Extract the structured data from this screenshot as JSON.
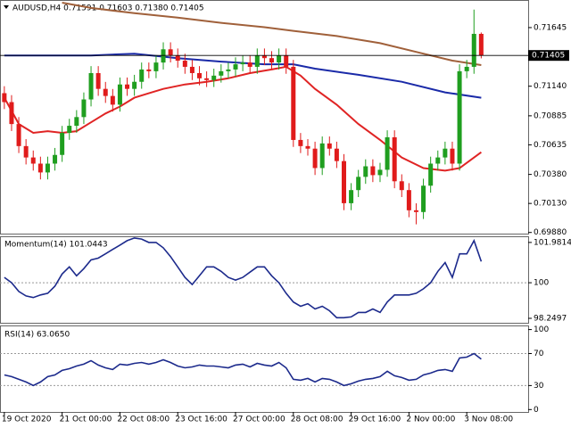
{
  "chart_data": [
    {
      "type": "candlestick",
      "title": "AUDUSD,H4  0.71591 0.71603 0.71380 0.71405",
      "up_color": "#1f9e1f",
      "down_color": "#e01b1b",
      "open": [
        0.7108,
        0.71003,
        0.70814,
        0.70624,
        0.70526,
        0.70473,
        0.70397,
        0.70473,
        0.70548,
        0.70738,
        0.70799,
        0.70874,
        0.71026,
        0.71253,
        0.71117,
        0.71056,
        0.70981,
        0.71155,
        0.71117,
        0.71178,
        0.71284,
        0.71269,
        0.71344,
        0.71458,
        0.71405,
        0.7136,
        0.71307,
        0.71253,
        0.71208,
        0.71193,
        0.71231,
        0.71269,
        0.71284,
        0.71329,
        0.71344,
        0.71307,
        0.71405,
        0.71382,
        0.71344,
        0.71405,
        0.71307,
        0.70677,
        0.70624,
        0.70602,
        0.70435,
        0.70647,
        0.70602,
        0.70495,
        0.70132,
        0.70245,
        0.70359,
        0.7045,
        0.70374,
        0.7042,
        0.707,
        0.70321,
        0.70245,
        0.70071,
        0.70056,
        0.70283,
        0.70473,
        0.70526,
        0.70602,
        0.70473,
        0.71269,
        0.71307,
        0.71591
      ],
      "high": [
        0.7114,
        0.71063,
        0.70874,
        0.70684,
        0.70586,
        0.70533,
        0.70533,
        0.70608,
        0.70798,
        0.70859,
        0.70934,
        0.71086,
        0.71313,
        0.71313,
        0.71177,
        0.71116,
        0.71215,
        0.71215,
        0.71238,
        0.71344,
        0.71344,
        0.71404,
        0.71518,
        0.71518,
        0.71465,
        0.7142,
        0.71367,
        0.71313,
        0.71268,
        0.71291,
        0.71329,
        0.71344,
        0.71389,
        0.71404,
        0.71404,
        0.71465,
        0.71465,
        0.71442,
        0.71465,
        0.71465,
        0.71367,
        0.70737,
        0.70684,
        0.70662,
        0.70707,
        0.70707,
        0.70662,
        0.70555,
        0.70305,
        0.70419,
        0.7051,
        0.7051,
        0.7048,
        0.7076,
        0.7076,
        0.70381,
        0.70305,
        0.70131,
        0.70343,
        0.70533,
        0.70586,
        0.70662,
        0.70662,
        0.71329,
        0.71367,
        0.718,
        0.71603
      ],
      "low": [
        0.70943,
        0.70754,
        0.70564,
        0.70466,
        0.70413,
        0.70337,
        0.70337,
        0.70413,
        0.70488,
        0.70678,
        0.70739,
        0.70814,
        0.70966,
        0.71057,
        0.70996,
        0.70921,
        0.70921,
        0.71057,
        0.71057,
        0.71118,
        0.71209,
        0.71209,
        0.71284,
        0.71345,
        0.713,
        0.71247,
        0.71193,
        0.71148,
        0.71133,
        0.71133,
        0.71171,
        0.71209,
        0.71224,
        0.71269,
        0.71247,
        0.71247,
        0.71322,
        0.71284,
        0.71284,
        0.71247,
        0.70617,
        0.70564,
        0.70542,
        0.70375,
        0.70375,
        0.70542,
        0.70435,
        0.70072,
        0.70072,
        0.70185,
        0.70299,
        0.70314,
        0.70314,
        0.7036,
        0.70261,
        0.70185,
        0.70011,
        0.6995,
        0.69996,
        0.70223,
        0.70413,
        0.70466,
        0.70413,
        0.70413,
        0.71209,
        0.71247,
        0.7138
      ],
      "close": [
        0.71003,
        0.70814,
        0.70624,
        0.70526,
        0.70473,
        0.70397,
        0.70473,
        0.70548,
        0.70738,
        0.70799,
        0.70874,
        0.71026,
        0.71253,
        0.71117,
        0.71056,
        0.70981,
        0.71155,
        0.71117,
        0.71178,
        0.71284,
        0.71269,
        0.71344,
        0.71458,
        0.71405,
        0.7136,
        0.71307,
        0.71253,
        0.71208,
        0.71193,
        0.71231,
        0.71269,
        0.71284,
        0.71329,
        0.71344,
        0.71307,
        0.71405,
        0.71382,
        0.71344,
        0.71405,
        0.71307,
        0.70677,
        0.70624,
        0.70602,
        0.70435,
        0.70647,
        0.70602,
        0.70495,
        0.70132,
        0.70245,
        0.70359,
        0.7045,
        0.70374,
        0.7042,
        0.707,
        0.70321,
        0.70245,
        0.70071,
        0.70056,
        0.70283,
        0.70473,
        0.70526,
        0.70602,
        0.70473,
        0.71269,
        0.71307,
        0.71591,
        0.71405
      ],
      "overlays": [
        {
          "color": "#a0603a",
          "x": [
            8,
            12,
            18,
            24,
            30,
            36,
            40,
            46,
            52,
            58,
            62,
            66
          ],
          "values": [
            0.7186,
            0.71814,
            0.71769,
            0.71731,
            0.71686,
            0.71648,
            0.71617,
            0.71572,
            0.71511,
            0.7142,
            0.7136,
            0.71322
          ]
        },
        {
          "color": "#1a2aa8",
          "x": [
            0,
            12,
            18,
            24,
            30,
            36,
            40,
            43,
            49,
            55,
            61,
            66
          ],
          "values": [
            0.71405,
            0.71405,
            0.7142,
            0.71382,
            0.71352,
            0.71329,
            0.71329,
            0.71291,
            0.71238,
            0.71178,
            0.71087,
            0.71041
          ]
        },
        {
          "color": "#e02424",
          "x": [
            0,
            2,
            4,
            6,
            8,
            10,
            12,
            14,
            16,
            18,
            20,
            22,
            25,
            28,
            31,
            34,
            37,
            39,
            41,
            43,
            46,
            49,
            52,
            55,
            58,
            61,
            63,
            66
          ],
          "values": [
            0.71041,
            0.70814,
            0.70738,
            0.70753,
            0.70738,
            0.70753,
            0.70829,
            0.70905,
            0.70965,
            0.71041,
            0.71079,
            0.71117,
            0.71155,
            0.71178,
            0.71208,
            0.71253,
            0.71284,
            0.71307,
            0.71231,
            0.71117,
            0.70981,
            0.70814,
            0.70677,
            0.70526,
            0.70435,
            0.70412,
            0.70435,
            0.70571
          ]
        }
      ],
      "last_price": {
        "value": 0.71405,
        "label": "0.71405"
      },
      "xlim": [
        -0.6,
        72.5
      ],
      "xticks": [
        {
          "value": 0,
          "label": "19 Oct 2020"
        },
        {
          "value": 8,
          "label": "21 Oct 00:00"
        },
        {
          "value": 16,
          "label": "22 Oct 08:00"
        },
        {
          "value": 24,
          "label": "23 Oct 16:00"
        },
        {
          "value": 32,
          "label": "27 Oct 00:00"
        },
        {
          "value": 40,
          "label": "28 Oct 08:00"
        },
        {
          "value": 48,
          "label": "29 Oct 16:00"
        },
        {
          "value": 56,
          "label": "2 Nov 00:00"
        },
        {
          "value": 64,
          "label": "3 Nov 08:00"
        }
      ],
      "ylim": [
        0.6987,
        0.71875
      ],
      "yticks": [
        0.71645,
        {
          "value": 0.7114,
          "label": "0.71140"
        },
        0.70885,
        0.70635,
        {
          "value": 0.7038,
          "label": "0.70380"
        },
        {
          "value": 0.7013,
          "label": "0.70130"
        },
        {
          "value": 0.6988,
          "label": "0.69880"
        }
      ]
    },
    {
      "type": "line",
      "title": "Momentum(14) 101.0443",
      "color": "#1c2a8c",
      "values": [
        100.26,
        100.0,
        99.57,
        99.35,
        99.27,
        99.4,
        99.48,
        99.83,
        100.43,
        100.78,
        100.34,
        100.69,
        101.12,
        101.21,
        101.42,
        101.64,
        101.85,
        102.07,
        102.2,
        102.15,
        101.98,
        101.98,
        101.72,
        101.29,
        100.78,
        100.26,
        99.91,
        100.34,
        100.78,
        100.78,
        100.56,
        100.26,
        100.13,
        100.26,
        100.52,
        100.78,
        100.78,
        100.34,
        100.0,
        99.48,
        99.05,
        98.84,
        98.97,
        98.71,
        98.84,
        98.62,
        98.28,
        98.28,
        98.32,
        98.54,
        98.54,
        98.71,
        98.54,
        99.05,
        99.4,
        99.4,
        99.4,
        99.48,
        99.7,
        100.0,
        100.56,
        100.99,
        100.26,
        101.42,
        101.42,
        102.07,
        101.0443
      ],
      "xlim": [
        -0.6,
        72.5
      ],
      "ylim": [
        98.03,
        102.24
      ],
      "yticks": [
        98.2497,
        100,
        101.9814
      ],
      "levels": [
        100
      ]
    },
    {
      "type": "line",
      "title": "RSI(14) 63.0650",
      "color": "#1c2a8c",
      "values": [
        43.3,
        41.1,
        37.8,
        34.4,
        30.0,
        34.4,
        41.1,
        43.3,
        48.9,
        51.1,
        54.4,
        56.7,
        61.1,
        55.6,
        52.2,
        50.0,
        56.7,
        55.6,
        57.8,
        58.9,
        56.7,
        58.9,
        62.2,
        58.9,
        54.4,
        52.2,
        53.3,
        55.6,
        54.4,
        54.4,
        53.3,
        52.2,
        55.6,
        56.7,
        53.3,
        57.8,
        55.6,
        54.4,
        58.9,
        52.2,
        37.8,
        36.7,
        38.9,
        34.4,
        38.9,
        37.8,
        34.4,
        30.0,
        32.2,
        35.6,
        37.8,
        38.9,
        41.1,
        47.8,
        42.2,
        40.0,
        36.7,
        37.8,
        43.3,
        45.6,
        48.9,
        50.0,
        47.8,
        64.4,
        65.6,
        70.0,
        63.065
      ],
      "xlim": [
        -0.6,
        72.5
      ],
      "ylim": [
        -3,
        104
      ],
      "yticks": [
        0,
        30,
        70,
        100
      ],
      "levels": [
        30,
        70
      ]
    }
  ]
}
